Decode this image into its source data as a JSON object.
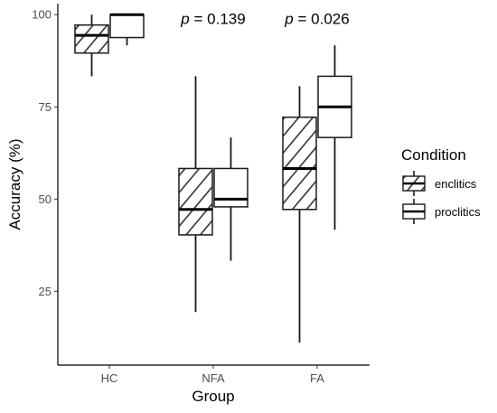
{
  "chart_data": {
    "type": "boxplot",
    "xlabel": "Group",
    "ylabel": "Accuracy (%)",
    "categories": [
      "HC",
      "NFA",
      "FA"
    ],
    "ylim": [
      5,
      103
    ],
    "yticks": [
      25,
      50,
      75,
      100
    ],
    "grid": false,
    "legend": {
      "title": "Condition",
      "placement": "right",
      "entries": [
        "enclitics",
        "proclitics"
      ]
    },
    "series": [
      {
        "name": "enclitics",
        "pattern": "hatched",
        "boxes": [
          {
            "category": "HC",
            "min": 83.3,
            "q1": 89.6,
            "median": 94.4,
            "q3": 97.2,
            "max": 100
          },
          {
            "category": "NFA",
            "min": 19.4,
            "q1": 40.3,
            "median": 47.2,
            "q3": 58.3,
            "max": 83.3
          },
          {
            "category": "FA",
            "min": 11.1,
            "q1": 47.2,
            "median": 58.3,
            "q3": 72.2,
            "max": 80.6
          }
        ]
      },
      {
        "name": "proclitics",
        "pattern": "plain",
        "boxes": [
          {
            "category": "HC",
            "min": 91.7,
            "q1": 93.8,
            "median": 100,
            "q3": 100,
            "max": 100
          },
          {
            "category": "NFA",
            "min": 33.3,
            "q1": 47.9,
            "median": 50,
            "q3": 58.3,
            "max": 66.7
          },
          {
            "category": "FA",
            "min": 41.7,
            "q1": 66.7,
            "median": 75,
            "q3": 83.3,
            "max": 91.7
          }
        ]
      }
    ],
    "annotations": [
      {
        "category": "NFA",
        "y": 99,
        "prefix": "p",
        "text": " = 0.139"
      },
      {
        "category": "FA",
        "y": 99,
        "prefix": "p",
        "text": " = 0.026"
      }
    ]
  }
}
